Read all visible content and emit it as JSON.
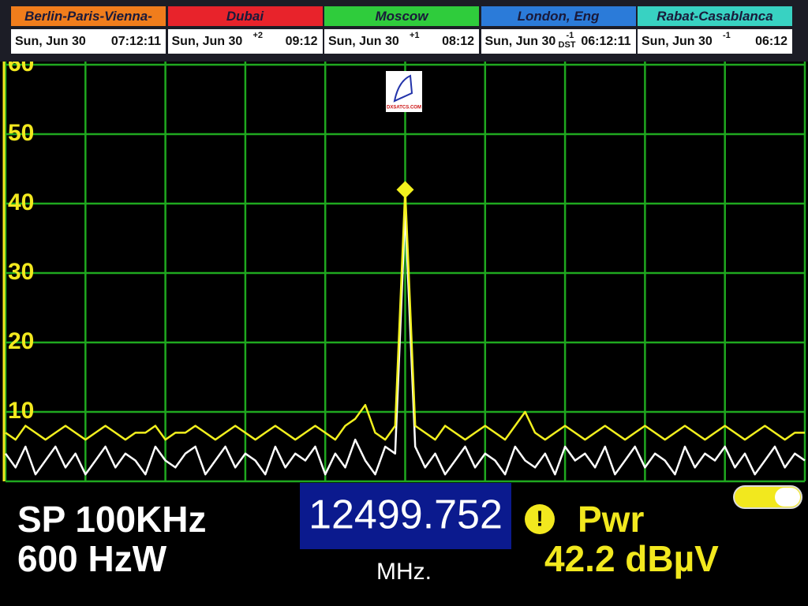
{
  "clocks": [
    {
      "city": "Berlin-Paris-Vienna-Roma",
      "color": "#f07d1c",
      "date": "Sun, Jun 30",
      "time": "07:12:11"
    },
    {
      "city": "Dubai",
      "color": "#e8232b",
      "date": "Sun, Jun 30",
      "offset": "+2",
      "time": "09:12"
    },
    {
      "city": "Moscow",
      "color": "#2fcc3c",
      "date": "Sun, Jun 30",
      "offset": "+1",
      "time": "08:12"
    },
    {
      "city": "London, Eng",
      "color": "#2b7bd9",
      "date": "Sun, Jun 30",
      "offset": "-1",
      "dst": "DST",
      "time": "06:12:11"
    },
    {
      "city": "Rabat-Casablanca",
      "color": "#38d2c2",
      "date": "Sun, Jun 30",
      "offset": "-1",
      "time": "06:12"
    }
  ],
  "logo": "DXSATCS.COM",
  "chart_data": {
    "type": "line",
    "ylim": [
      0,
      60
    ],
    "yticks": [
      10,
      20,
      30,
      40,
      50,
      60
    ],
    "grid": true,
    "grid_color": "#1fa81f",
    "series": [
      {
        "color": "#f2f01e",
        "values": [
          7,
          6,
          8,
          7,
          6,
          7,
          8,
          7,
          6,
          7,
          8,
          7,
          6,
          7,
          7,
          8,
          6,
          7,
          7,
          8,
          7,
          6,
          7,
          8,
          7,
          6,
          7,
          8,
          7,
          6,
          7,
          8,
          7,
          6,
          8,
          9,
          11,
          7,
          6,
          8,
          42,
          8,
          7,
          6,
          8,
          7,
          6,
          7,
          8,
          7,
          6,
          8,
          10,
          7,
          6,
          7,
          8,
          7,
          6,
          7,
          8,
          7,
          6,
          7,
          8,
          7,
          6,
          7,
          8,
          7,
          6,
          7,
          8,
          7,
          6,
          7,
          8,
          7,
          6,
          7,
          7
        ]
      },
      {
        "color": "#ffffff",
        "values": [
          4,
          2,
          5,
          1,
          3,
          5,
          2,
          4,
          1,
          3,
          5,
          2,
          4,
          3,
          1,
          5,
          3,
          2,
          4,
          5,
          1,
          3,
          5,
          2,
          4,
          3,
          1,
          5,
          2,
          4,
          3,
          5,
          1,
          4,
          2,
          6,
          3,
          1,
          5,
          4,
          39,
          5,
          2,
          4,
          1,
          3,
          5,
          2,
          4,
          3,
          1,
          5,
          3,
          2,
          4,
          1,
          5,
          3,
          4,
          2,
          5,
          1,
          3,
          5,
          2,
          4,
          3,
          1,
          5,
          2,
          4,
          3,
          5,
          2,
          4,
          1,
          3,
          5,
          2,
          4,
          3
        ]
      }
    ]
  },
  "readout": {
    "span": "SP 100KHz",
    "rbw": "600 HzW",
    "frequency": "12499.752",
    "unit": "MHz.",
    "label": "Pwr",
    "power": "42.2 dBµV"
  }
}
